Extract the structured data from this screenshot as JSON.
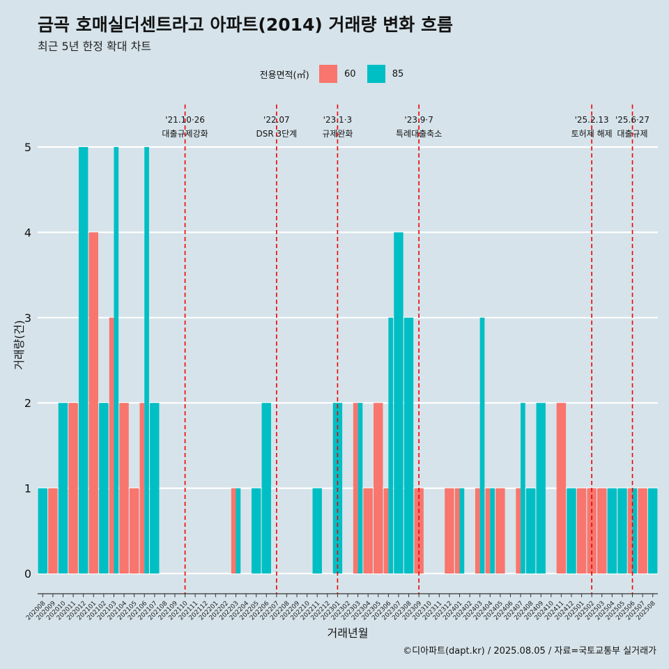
{
  "title": "금곡 호매실더센트라고 아파트(2014) 거래량 변화 흐름",
  "subtitle": "최근 5년 한정 확대 차트",
  "caption": "©디아파트(dapt.kr) / 2025.08.05 / 자료=국토교통부 실거래가",
  "legend": {
    "title": "전용면적(㎡)",
    "items": [
      {
        "label": "60",
        "color": "#f8766d"
      },
      {
        "label": "85",
        "color": "#00bfc4"
      }
    ]
  },
  "chart_data": {
    "type": "bar",
    "xlabel": "거래년월",
    "ylabel": "거래량(건)",
    "ylim": [
      -0.2,
      5.5
    ],
    "yticks": [
      0,
      1,
      2,
      3,
      4,
      5
    ],
    "grid": true,
    "legend_position": "top",
    "categories": [
      "202008",
      "202009",
      "202010",
      "202011",
      "202012",
      "202101",
      "202102",
      "202103",
      "202104",
      "202105",
      "202106",
      "202107",
      "202108",
      "202109",
      "202110",
      "202111",
      "202112",
      "202201",
      "202202",
      "202203",
      "202204",
      "202205",
      "202206",
      "202207",
      "202208",
      "202209",
      "202210",
      "202211",
      "202212",
      "202301",
      "202302",
      "202303",
      "202304",
      "202305",
      "202306",
      "202307",
      "202308",
      "202309",
      "202310",
      "202311",
      "202312",
      "202401",
      "202402",
      "202403",
      "202404",
      "202405",
      "202406",
      "202407",
      "202408",
      "202409",
      "202410",
      "202411",
      "202412",
      "202501",
      "202502",
      "202503",
      "202504",
      "202505",
      "202506",
      "202507",
      "202508"
    ],
    "series": [
      {
        "name": "60",
        "values": [
          0,
          1,
          0,
          2,
          0,
          4,
          0,
          3,
          2,
          1,
          2,
          0,
          0,
          0,
          0,
          0,
          0,
          0,
          0,
          1,
          0,
          0,
          0,
          0,
          0,
          0,
          0,
          0,
          0,
          0,
          0,
          2,
          1,
          2,
          1,
          0,
          0,
          1,
          0,
          0,
          1,
          1,
          0,
          1,
          1,
          1,
          0,
          1,
          0,
          0,
          0,
          2,
          0,
          1,
          1,
          1,
          0,
          0,
          1,
          1,
          0
        ]
      },
      {
        "name": "85",
        "values": [
          1,
          0,
          2,
          0,
          5,
          0,
          2,
          5,
          0,
          0,
          5,
          2,
          0,
          0,
          0,
          0,
          0,
          0,
          0,
          1,
          0,
          1,
          2,
          0,
          0,
          0,
          0,
          1,
          0,
          2,
          0,
          2,
          0,
          0,
          3,
          4,
          3,
          0,
          0,
          0,
          0,
          1,
          0,
          3,
          1,
          0,
          0,
          2,
          1,
          2,
          0,
          0,
          1,
          0,
          0,
          0,
          1,
          1,
          1,
          0,
          1
        ]
      }
    ],
    "events": [
      {
        "date": "'21.10·26",
        "label": "대출규제강화",
        "category": "202110"
      },
      {
        "date": "'22.07",
        "label": "DSR 3단계",
        "category": "202207"
      },
      {
        "date": "'23.1·3",
        "label": "규제완화",
        "category": "202301"
      },
      {
        "date": "'23.9·7",
        "label": "특례대출축소",
        "category": "202309"
      },
      {
        "date": "'25.2.13",
        "label": "토허제 해제",
        "category": "202502"
      },
      {
        "date": "'25.6·27",
        "label": "대출규제",
        "category": "202506"
      }
    ]
  }
}
